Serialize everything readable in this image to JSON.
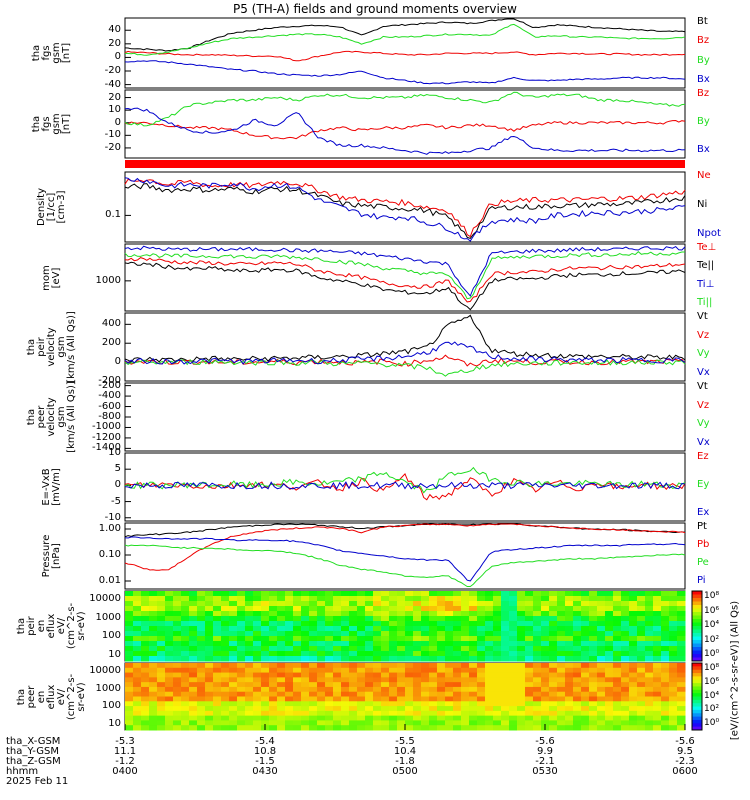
{
  "title": "P5 (TH-A) fields and ground moments overview",
  "colors": {
    "black": "#000000",
    "red": "#ee0000",
    "green": "#22dd22",
    "blue": "#0000cc",
    "bar": "#ff0000"
  },
  "chart_data": [
    {
      "type": "line",
      "id": "p1",
      "ylabel": "tha\nfgs\ngsm\n[nT]",
      "yticks": [
        "40",
        "20",
        "0",
        "-20",
        "-40"
      ],
      "ylim": [
        -45,
        58
      ],
      "series": [
        {
          "name": "Bt",
          "color": "black",
          "values": [
            14,
            12,
            10,
            14,
            26,
            36,
            40,
            44,
            46,
            47,
            45,
            32,
            46,
            48,
            50,
            52,
            50,
            54,
            58,
            44,
            48,
            46,
            44,
            42,
            40,
            38,
            38
          ]
        },
        {
          "name": "Bz",
          "color": "red",
          "values": [
            8,
            7,
            5,
            4,
            4,
            3,
            2,
            2,
            -5,
            2,
            8,
            8,
            6,
            4,
            4,
            6,
            6,
            6,
            8,
            4,
            6,
            6,
            5,
            5,
            4,
            4,
            5
          ]
        },
        {
          "name": "By",
          "color": "green",
          "values": [
            6,
            4,
            8,
            14,
            22,
            28,
            30,
            32,
            34,
            34,
            30,
            20,
            30,
            30,
            32,
            34,
            34,
            32,
            50,
            30,
            32,
            30,
            30,
            28,
            28,
            28,
            30
          ]
        },
        {
          "name": "Bx",
          "color": "blue",
          "values": [
            -6,
            -5,
            -7,
            -10,
            -14,
            -18,
            -20,
            -24,
            -26,
            -27,
            -25,
            -20,
            -30,
            -34,
            -38,
            -38,
            -36,
            -38,
            -30,
            -34,
            -34,
            -32,
            -32,
            -30,
            -30,
            -30,
            -32
          ]
        }
      ]
    },
    {
      "type": "line",
      "id": "p2",
      "ylabel": "tha\nfgs\ngsm\n[nT]",
      "yticks": [
        "20",
        "10",
        "0",
        "-10",
        "-20"
      ],
      "ylim": [
        -28,
        26
      ],
      "series": [
        {
          "name": "Bz",
          "color": "red",
          "values": [
            0,
            0,
            -2,
            -4,
            -4,
            -6,
            -10,
            -12,
            -12,
            -6,
            -4,
            -6,
            -4,
            -4,
            -2,
            -4,
            -2,
            -2,
            -6,
            -2,
            0,
            0,
            0,
            0,
            0,
            0,
            2
          ]
        },
        {
          "name": "By",
          "color": "green",
          "values": [
            0,
            -2,
            4,
            14,
            16,
            18,
            18,
            20,
            18,
            22,
            22,
            20,
            20,
            20,
            22,
            20,
            18,
            16,
            24,
            20,
            22,
            22,
            18,
            18,
            16,
            14,
            14
          ]
        },
        {
          "name": "Bx",
          "color": "blue",
          "values": [
            12,
            10,
            0,
            -6,
            -8,
            -6,
            2,
            -2,
            8,
            -12,
            -18,
            -18,
            -20,
            -22,
            -24,
            -24,
            -22,
            -20,
            -10,
            -20,
            -22,
            -22,
            -22,
            -22,
            -22,
            -22,
            -22
          ]
        }
      ]
    },
    {
      "type": "line",
      "id": "p3",
      "ylabel": "Density\n[1/cc]\n[cm-3]",
      "yticks": [
        "0.1"
      ],
      "ylim": [
        0,
        1
      ],
      "series": [
        {
          "name": "Ne",
          "color": "red",
          "values": [
            0.85,
            0.9,
            0.82,
            0.86,
            0.8,
            0.82,
            0.8,
            0.86,
            0.84,
            0.74,
            0.64,
            0.6,
            0.58,
            0.56,
            0.5,
            0.45,
            0.1,
            0.55,
            0.58,
            0.6,
            0.6,
            0.6,
            0.62,
            0.62,
            0.64,
            0.68,
            0.72
          ]
        },
        {
          "name": "Ni",
          "color": "black",
          "values": [
            0.78,
            0.8,
            0.74,
            0.76,
            0.74,
            0.76,
            0.72,
            0.76,
            0.74,
            0.66,
            0.55,
            0.52,
            0.5,
            0.48,
            0.45,
            0.35,
            0.05,
            0.48,
            0.5,
            0.5,
            0.52,
            0.52,
            0.54,
            0.54,
            0.56,
            0.6,
            0.64
          ]
        },
        {
          "name": "Npot",
          "color": "blue",
          "values": [
            0.9,
            0.88,
            0.8,
            0.82,
            0.8,
            0.84,
            0.76,
            0.82,
            0.78,
            0.6,
            0.5,
            0.4,
            0.35,
            0.36,
            0.28,
            0.2,
            0.02,
            0.3,
            0.32,
            0.3,
            0.38,
            0.4,
            0.42,
            0.42,
            0.44,
            0.46,
            0.5
          ]
        }
      ]
    },
    {
      "type": "line",
      "id": "p4",
      "ylabel": "mom\n[eV]",
      "yticks": [
        "1000"
      ],
      "ylim": [
        0,
        1
      ],
      "series": [
        {
          "name": "Te⊥",
          "color": "red",
          "values": [
            0.78,
            0.78,
            0.74,
            0.72,
            0.72,
            0.7,
            0.7,
            0.72,
            0.7,
            0.6,
            0.55,
            0.5,
            0.42,
            0.38,
            0.36,
            0.45,
            0.1,
            0.55,
            0.58,
            0.58,
            0.62,
            0.64,
            0.64,
            0.66,
            0.66,
            0.68,
            0.7
          ]
        },
        {
          "name": "Te||",
          "color": "black",
          "values": [
            0.7,
            0.7,
            0.66,
            0.62,
            0.64,
            0.6,
            0.6,
            0.62,
            0.6,
            0.5,
            0.45,
            0.4,
            0.32,
            0.28,
            0.26,
            0.35,
            0.0,
            0.45,
            0.48,
            0.48,
            0.52,
            0.54,
            0.54,
            0.56,
            0.56,
            0.58,
            0.6
          ]
        },
        {
          "name": "Ti⊥",
          "color": "blue",
          "values": [
            0.94,
            0.94,
            0.92,
            0.92,
            0.92,
            0.92,
            0.92,
            0.92,
            0.9,
            0.9,
            0.88,
            0.86,
            0.82,
            0.78,
            0.74,
            0.7,
            0.2,
            0.86,
            0.88,
            0.9,
            0.9,
            0.92,
            0.92,
            0.92,
            0.94,
            0.94,
            0.94
          ]
        },
        {
          "name": "Ti||",
          "color": "green",
          "values": [
            0.84,
            0.84,
            0.82,
            0.82,
            0.82,
            0.82,
            0.8,
            0.82,
            0.8,
            0.78,
            0.74,
            0.7,
            0.64,
            0.6,
            0.56,
            0.55,
            0.15,
            0.78,
            0.8,
            0.82,
            0.82,
            0.84,
            0.84,
            0.84,
            0.86,
            0.86,
            0.86
          ]
        }
      ]
    },
    {
      "type": "line",
      "id": "p5",
      "ylabel": "tha\npeir\nvelocity\ngsm\n[km/s (All Qs)]",
      "yticks": [
        "400",
        "200",
        "0",
        "-200"
      ],
      "ylim": [
        -200,
        520
      ],
      "series": [
        {
          "name": "Vt",
          "color": "black",
          "values": [
            20,
            30,
            25,
            30,
            40,
            30,
            35,
            40,
            45,
            50,
            60,
            70,
            90,
            110,
            150,
            380,
            480,
            130,
            90,
            80,
            70,
            60,
            60,
            55,
            50,
            50,
            50
          ]
        },
        {
          "name": "Vz",
          "color": "red",
          "values": [
            0,
            5,
            0,
            5,
            0,
            -5,
            0,
            5,
            0,
            10,
            0,
            -10,
            10,
            -20,
            20,
            60,
            -40,
            20,
            10,
            0,
            5,
            0,
            0,
            5,
            0,
            5,
            0
          ]
        },
        {
          "name": "Vy",
          "color": "green",
          "values": [
            0,
            -5,
            0,
            0,
            5,
            0,
            -5,
            0,
            -10,
            0,
            -20,
            -10,
            -20,
            -40,
            -60,
            -140,
            -80,
            -30,
            -20,
            -10,
            -10,
            0,
            -10,
            0,
            -5,
            0,
            0
          ]
        },
        {
          "name": "Vx",
          "color": "blue",
          "values": [
            5,
            10,
            5,
            10,
            15,
            10,
            10,
            15,
            20,
            10,
            20,
            30,
            40,
            60,
            100,
            200,
            150,
            60,
            40,
            30,
            30,
            20,
            20,
            20,
            20,
            20,
            20
          ]
        }
      ]
    },
    {
      "type": "line",
      "id": "p6",
      "ylabel": "tha\npeer\nvelocity\ngsm\n[km/s (All Qs)]",
      "yticks": [
        "-200",
        "-400",
        "-600",
        "-800",
        "-1000",
        "-1200",
        "-1400"
      ],
      "ylim": [
        -1450,
        -150
      ],
      "series": [
        {
          "name": "Vt",
          "color": "black",
          "values": []
        },
        {
          "name": "Vz",
          "color": "red",
          "values": []
        },
        {
          "name": "Vy",
          "color": "green",
          "values": []
        },
        {
          "name": "Vx",
          "color": "blue",
          "values": []
        }
      ]
    },
    {
      "type": "line",
      "id": "p7",
      "ylabel": "E=-VxB\n[mV/m]",
      "yticks": [
        "10",
        "5",
        "0",
        "-5",
        "-10"
      ],
      "ylim": [
        -11,
        10
      ],
      "series": [
        {
          "name": "Ez",
          "color": "red",
          "values": [
            0,
            0,
            0.3,
            0,
            -0.3,
            0,
            0.4,
            0,
            -0.5,
            0.8,
            -1,
            1.5,
            -2,
            3,
            -4,
            -3,
            2,
            -3,
            1.5,
            -1.5,
            1,
            -1,
            1,
            -1,
            0.5,
            -0.5,
            0
          ]
        },
        {
          "name": "Ey",
          "color": "green",
          "values": [
            0,
            0,
            0,
            0.3,
            0,
            0.3,
            0,
            0.5,
            1,
            0.4,
            1,
            2,
            4,
            1,
            -2,
            3,
            5,
            2,
            1,
            0.5,
            0.5,
            0.5,
            0.5,
            0,
            0.5,
            0,
            0.3
          ]
        },
        {
          "name": "Ex",
          "color": "blue",
          "values": [
            0,
            0,
            0,
            0,
            0,
            0,
            0,
            0,
            0,
            0,
            0,
            0,
            0,
            0,
            0,
            0,
            0,
            0,
            0,
            0,
            0,
            0,
            0,
            0,
            0,
            0,
            0
          ]
        }
      ]
    },
    {
      "type": "line",
      "id": "p8",
      "ylabel": "Pressure\n[nPa]",
      "yticks": [
        "1.00",
        "0.10",
        "0.01"
      ],
      "ylim": [
        0,
        1
      ],
      "series": [
        {
          "name": "Pt",
          "color": "black",
          "values": [
            0.8,
            0.82,
            0.84,
            0.86,
            0.9,
            0.94,
            0.96,
            0.98,
            0.98,
            0.97,
            0.94,
            0.92,
            0.94,
            0.96,
            0.98,
            0.98,
            0.98,
            0.98,
            0.99,
            0.96,
            0.94,
            0.92,
            0.9,
            0.9,
            0.88,
            0.87,
            0.86
          ]
        },
        {
          "name": "Pb",
          "color": "red",
          "values": [
            0.4,
            0.3,
            0.28,
            0.5,
            0.68,
            0.8,
            0.86,
            0.9,
            0.92,
            0.94,
            0.92,
            0.86,
            0.94,
            0.96,
            0.98,
            0.98,
            0.96,
            0.98,
            0.99,
            0.96,
            0.94,
            0.92,
            0.9,
            0.9,
            0.88,
            0.87,
            0.86
          ]
        },
        {
          "name": "Pe",
          "color": "green",
          "values": [
            0.66,
            0.66,
            0.64,
            0.62,
            0.62,
            0.6,
            0.58,
            0.58,
            0.54,
            0.46,
            0.36,
            0.3,
            0.26,
            0.2,
            0.18,
            0.2,
            0.02,
            0.34,
            0.4,
            0.42,
            0.44,
            0.46,
            0.46,
            0.48,
            0.5,
            0.52,
            0.52
          ]
        },
        {
          "name": "Pi",
          "color": "blue",
          "values": [
            0.78,
            0.78,
            0.76,
            0.76,
            0.76,
            0.74,
            0.74,
            0.74,
            0.72,
            0.66,
            0.58,
            0.54,
            0.5,
            0.46,
            0.44,
            0.44,
            0.1,
            0.56,
            0.6,
            0.62,
            0.64,
            0.66,
            0.66,
            0.66,
            0.68,
            0.68,
            0.68
          ]
        }
      ]
    },
    {
      "type": "heatmap",
      "id": "p9",
      "ylabel": "tha\npeir\nen\neflux\neV/\n(cm^2-s-\nsr-eV)",
      "yticks": [
        "10000",
        "1000",
        "100",
        "10"
      ]
    },
    {
      "type": "heatmap",
      "id": "p10",
      "ylabel": "tha\npeer\nen\neflux\neV/\n(cm^2-s-\nsr-eV)",
      "yticks": [
        "10000",
        "1000",
        "100",
        "10"
      ]
    }
  ],
  "colorbar": {
    "units": "[eV/(cm^2-s-sr-eV)] (All Qs)",
    "upper_ticks": [
      "10⁸",
      "10⁶",
      "10⁴",
      "10²",
      "10⁰"
    ],
    "lower_ticks": [
      "10⁸",
      "10⁶",
      "10⁴",
      "10²",
      "10⁰"
    ]
  },
  "xaxis": {
    "labels": [
      "tha_X-GSM",
      "tha_Y-GSM",
      "tha_Z-GSM",
      "hhmm",
      "2025 Feb 11"
    ],
    "rows": [
      [
        "-5.3",
        "-5.4",
        "-5.5",
        "-5.6",
        "-5.6"
      ],
      [
        "11.1",
        "10.8",
        "10.4",
        "9.9",
        "9.5"
      ],
      [
        "-1.2",
        "-1.5",
        "-1.8",
        "-2.1",
        "-2.3"
      ],
      [
        "0400",
        "0430",
        "0500",
        "0530",
        "0600"
      ]
    ]
  }
}
